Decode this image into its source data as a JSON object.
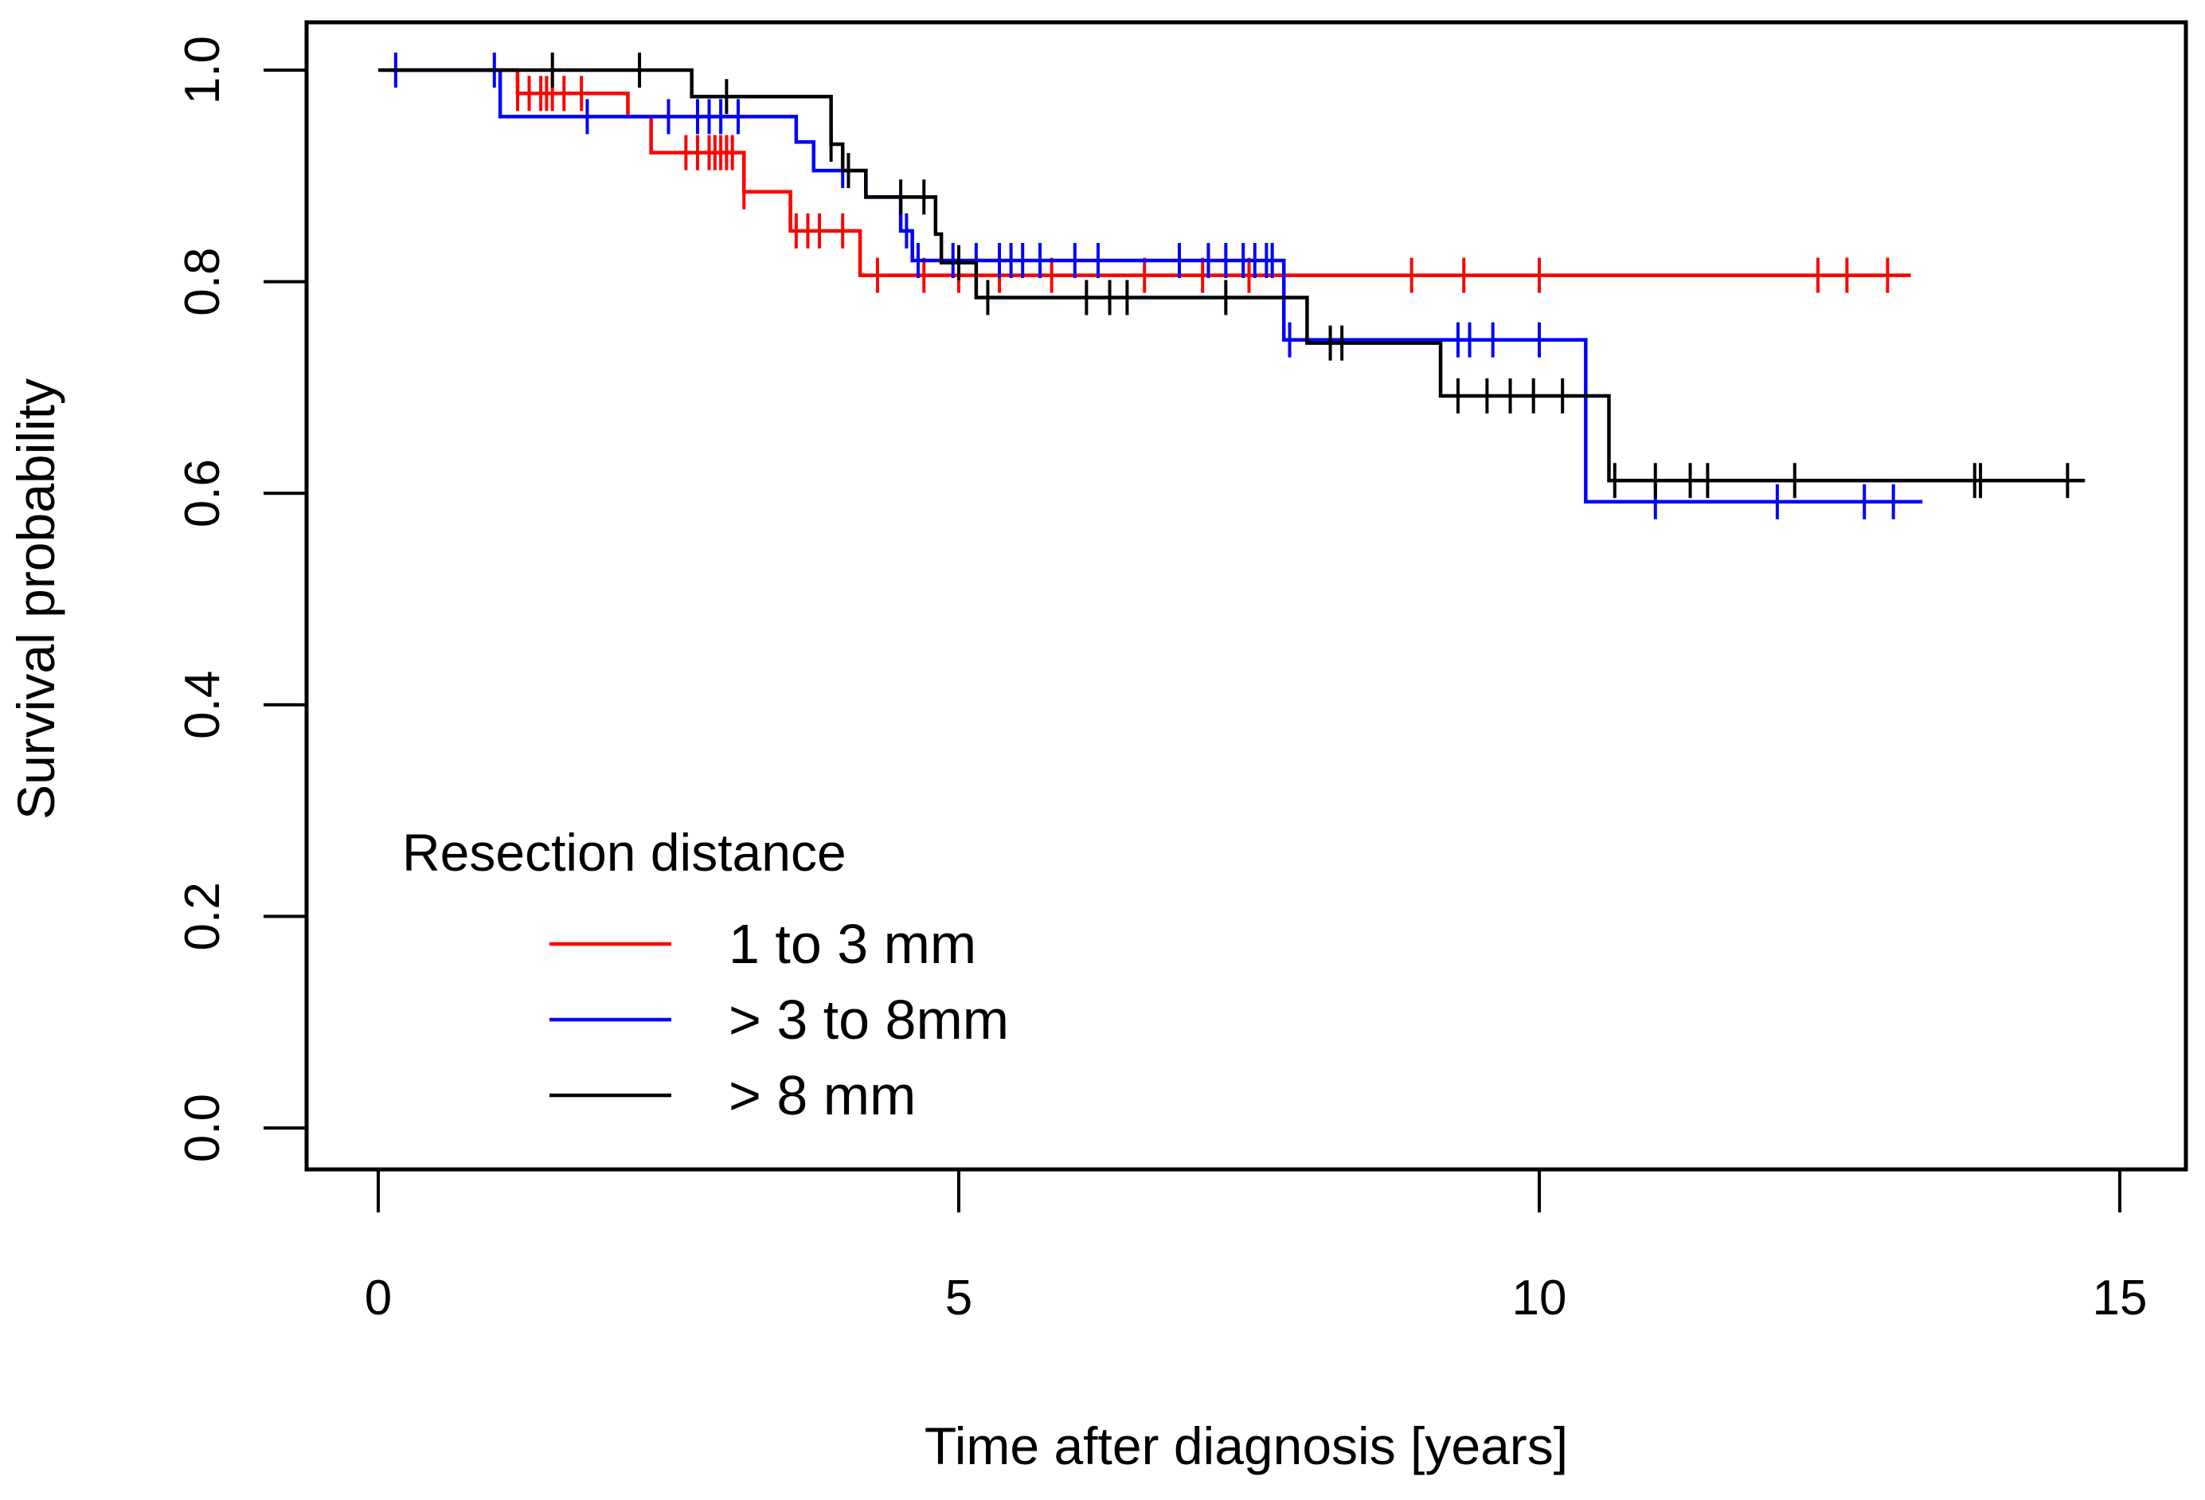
{
  "chart_data": {
    "type": "line",
    "subtype": "kaplan-meier step curve with censoring marks",
    "title": "",
    "xlabel": "Time after diagnosis [years]",
    "ylabel": "Survival probability",
    "xlim": [
      0,
      15
    ],
    "ylim": [
      0,
      1
    ],
    "xticks": [
      0,
      5,
      10,
      15
    ],
    "xtick_labels": [
      "0",
      "5",
      "10",
      "15"
    ],
    "yticks": [
      0,
      0.2,
      0.4,
      0.6,
      0.8,
      1.0
    ],
    "ytick_labels": [
      "0.0",
      "0.2",
      "0.4",
      "0.6",
      "0.8",
      "1.0"
    ],
    "grid": false,
    "legend": {
      "title": "Resection distance",
      "placement": "bottom-left"
    },
    "series": [
      {
        "name": "1 to 3 mm",
        "color": "#ff0000",
        "steps": [
          [
            0.95,
            1.0
          ],
          [
            1.2,
            0.978
          ],
          [
            2.15,
            0.956
          ],
          [
            2.35,
            0.922
          ],
          [
            3.15,
            0.885
          ],
          [
            3.55,
            0.848
          ],
          [
            4.15,
            0.806
          ],
          [
            13.2,
            0.806
          ]
        ],
        "censored": [
          1.2,
          1.3,
          1.4,
          1.45,
          1.5,
          1.6,
          1.75,
          2.65,
          2.75,
          2.85,
          2.9,
          2.95,
          3.0,
          3.05,
          3.15,
          3.6,
          3.7,
          3.8,
          4.0,
          4.3,
          4.7,
          5.0,
          5.35,
          5.8,
          6.6,
          7.1,
          7.5,
          8.9,
          9.35,
          10.0,
          12.4,
          12.65,
          13.0
        ]
      },
      {
        "name": "> 3 to 8mm",
        "color": "#0000ff",
        "steps": [
          [
            0.1,
            1.0
          ],
          [
            1.05,
            0.956
          ],
          [
            3.6,
            0.932
          ],
          [
            3.75,
            0.905
          ],
          [
            4.2,
            0.88
          ],
          [
            4.5,
            0.848
          ],
          [
            4.6,
            0.82
          ],
          [
            7.75,
            0.82
          ],
          [
            7.8,
            0.745
          ],
          [
            10.4,
            0.745
          ],
          [
            10.4,
            0.592
          ],
          [
            13.3,
            0.592
          ]
        ],
        "censored": [
          0.15,
          1.0,
          1.8,
          2.5,
          2.75,
          2.85,
          2.95,
          3.1,
          4.0,
          4.55,
          4.65,
          4.95,
          5.15,
          5.35,
          5.45,
          5.55,
          5.7,
          6.0,
          6.2,
          6.9,
          7.15,
          7.3,
          7.45,
          7.55,
          7.65,
          7.7,
          7.85,
          9.3,
          9.4,
          9.6,
          10.0,
          11.0,
          12.05,
          12.8,
          13.05
        ]
      },
      {
        "name": "> 8 mm",
        "color": "#000000",
        "steps": [
          [
            0.0,
            1.0
          ],
          [
            2.7,
            0.975
          ],
          [
            3.9,
            0.93
          ],
          [
            4.0,
            0.905
          ],
          [
            4.2,
            0.88
          ],
          [
            4.8,
            0.845
          ],
          [
            4.85,
            0.818
          ],
          [
            5.15,
            0.785
          ],
          [
            8.0,
            0.785
          ],
          [
            8.0,
            0.742
          ],
          [
            9.15,
            0.742
          ],
          [
            9.15,
            0.692
          ],
          [
            10.6,
            0.692
          ],
          [
            10.6,
            0.612
          ],
          [
            14.7,
            0.612
          ]
        ],
        "censored": [
          1.5,
          2.25,
          3.0,
          3.9,
          4.05,
          4.5,
          4.7,
          5.0,
          5.25,
          6.1,
          6.3,
          6.45,
          7.3,
          8.2,
          8.3,
          9.3,
          9.55,
          9.75,
          9.95,
          10.2,
          10.65,
          11.0,
          11.3,
          11.45,
          12.2,
          13.75,
          13.8,
          14.55
        ]
      }
    ]
  }
}
